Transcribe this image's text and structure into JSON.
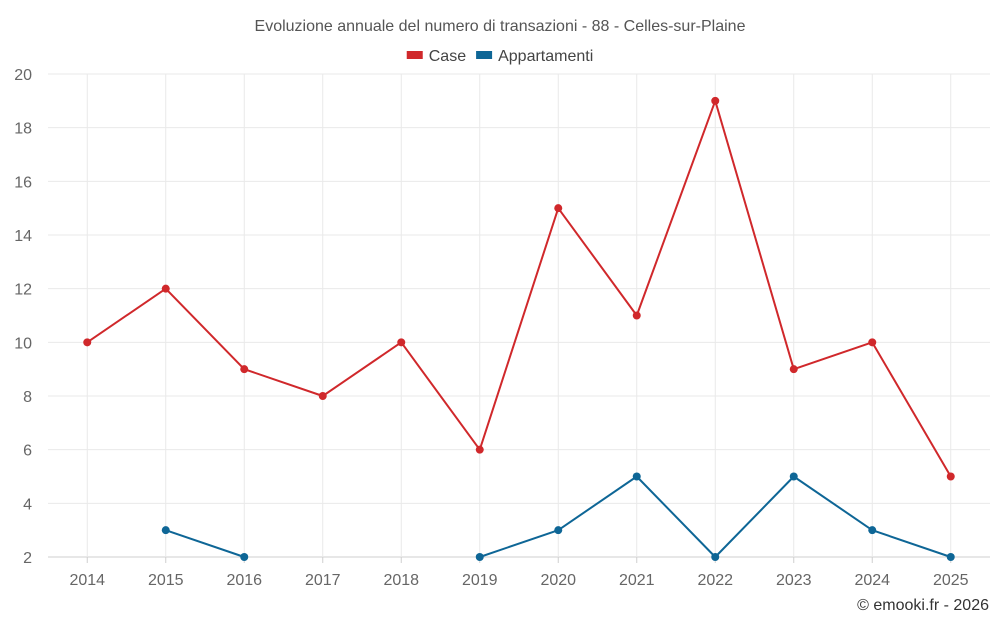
{
  "chart_data": {
    "type": "line",
    "title": "Evoluzione annuale del numero di transazioni - 88 - Celles-sur-Plaine",
    "categories": [
      "2014",
      "2015",
      "2016",
      "2017",
      "2018",
      "2019",
      "2020",
      "2021",
      "2022",
      "2023",
      "2024",
      "2025"
    ],
    "series": [
      {
        "name": "Case",
        "color": "#d0282b",
        "values": [
          10,
          12,
          9,
          8,
          10,
          6,
          15,
          11,
          19,
          9,
          10,
          5
        ]
      },
      {
        "name": "Appartamenti",
        "color": "#0e6696",
        "values": [
          null,
          3,
          2,
          null,
          null,
          2,
          3,
          5,
          2,
          5,
          3,
          2
        ]
      }
    ],
    "ylim": [
      2,
      20
    ],
    "yticks": [
      2,
      4,
      6,
      8,
      10,
      12,
      14,
      16,
      18,
      20
    ],
    "xlabel": "",
    "ylabel": "",
    "grid": true,
    "legend_position": "top-center"
  },
  "credit": "© emooki.fr - 2026"
}
